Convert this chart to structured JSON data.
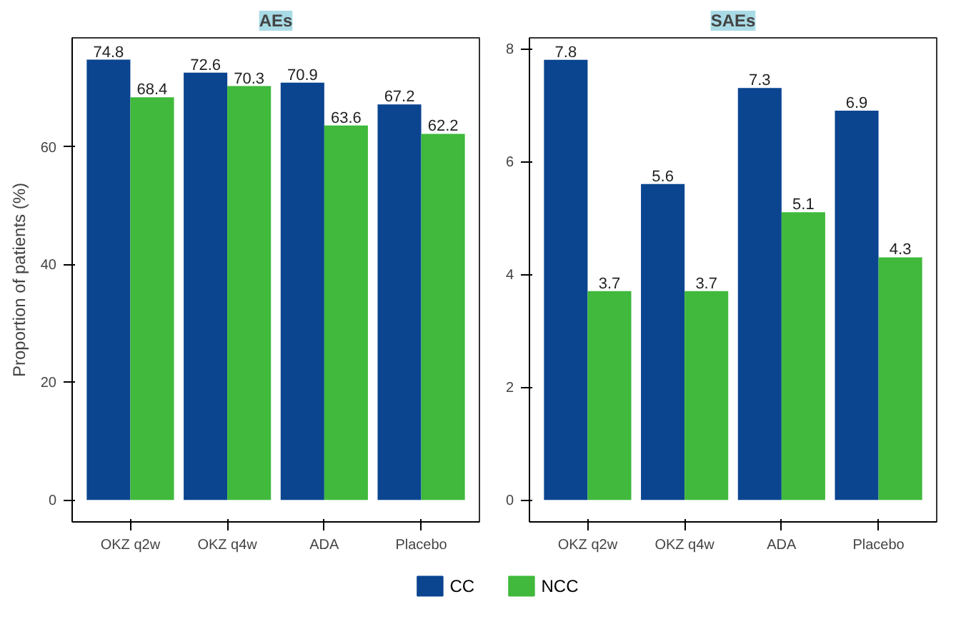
{
  "chart_data": [
    {
      "type": "bar",
      "title": "AEs",
      "ylabel": "Proportion of patients (%)",
      "categories": [
        "OKZ q2w",
        "OKZ q4w",
        "ADA",
        "Placebo"
      ],
      "series": [
        {
          "name": "CC",
          "color": "#0b4590",
          "values": [
            74.8,
            72.6,
            70.9,
            67.2
          ]
        },
        {
          "name": "NCC",
          "color": "#40b93c",
          "values": [
            68.4,
            70.3,
            63.6,
            62.2
          ]
        }
      ],
      "ylim": [
        -3.74,
        78.5
      ],
      "yticks": [
        0,
        20,
        40,
        60
      ],
      "data_labels": true,
      "grid": false,
      "legend": "bottom"
    },
    {
      "type": "bar",
      "title": "SAEs",
      "categories": [
        "OKZ q2w",
        "OKZ q4w",
        "ADA",
        "Placebo"
      ],
      "series": [
        {
          "name": "CC",
          "color": "#0b4590",
          "values": [
            7.8,
            5.6,
            7.3,
            6.9
          ]
        },
        {
          "name": "NCC",
          "color": "#40b93c",
          "values": [
            3.7,
            3.7,
            5.1,
            4.3
          ]
        }
      ],
      "ylim": [
        -0.39,
        8.19
      ],
      "yticks": [
        0,
        2,
        4,
        6,
        8
      ],
      "data_labels": true,
      "grid": false
    }
  ]
}
